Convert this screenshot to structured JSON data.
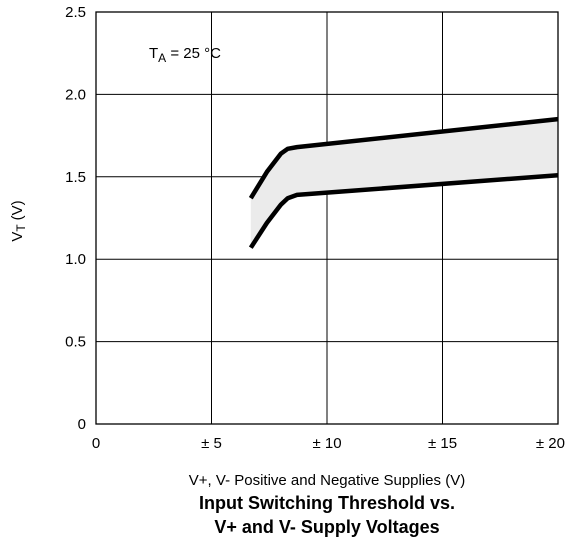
{
  "chart_data": {
    "type": "area",
    "title": "Input Switching Threshold vs.",
    "subtitle": "V+ and V- Supply Voltages",
    "xlabel": "V+, V- Positive and Negative Supplies (V)",
    "ylabel_main": "V",
    "ylabel_sub": "T",
    "ylabel_unit": "(V)",
    "annotation": {
      "prefix": "T",
      "sub": "A",
      "rest": " = 25 °C"
    },
    "xlim": [
      0,
      20
    ],
    "ylim": [
      0,
      2.5
    ],
    "grid": true,
    "x_ticks": [
      {
        "value": 0,
        "label": "0"
      },
      {
        "value": 5,
        "label": "± 5"
      },
      {
        "value": 10,
        "label": "± 10"
      },
      {
        "value": 15,
        "label": "± 15"
      },
      {
        "value": 20,
        "label": "± 20"
      }
    ],
    "y_ticks": [
      {
        "value": 0,
        "label": "0"
      },
      {
        "value": 0.5,
        "label": "0.5"
      },
      {
        "value": 1.0,
        "label": "1.0"
      },
      {
        "value": 1.5,
        "label": "1.5"
      },
      {
        "value": 2.0,
        "label": "2.0"
      },
      {
        "value": 2.5,
        "label": "2.5"
      }
    ],
    "series": [
      {
        "x": [
          6.7,
          7.4,
          8.0,
          8.3,
          8.7,
          20
        ],
        "values": [
          1.37,
          1.53,
          1.64,
          1.67,
          1.68,
          1.85
        ]
      },
      {
        "x": [
          6.7,
          7.4,
          8.0,
          8.3,
          8.7,
          20
        ],
        "values": [
          1.07,
          1.22,
          1.33,
          1.37,
          1.39,
          1.51
        ]
      }
    ],
    "fill_color": "#ebebeb",
    "line_color": "#000000"
  }
}
